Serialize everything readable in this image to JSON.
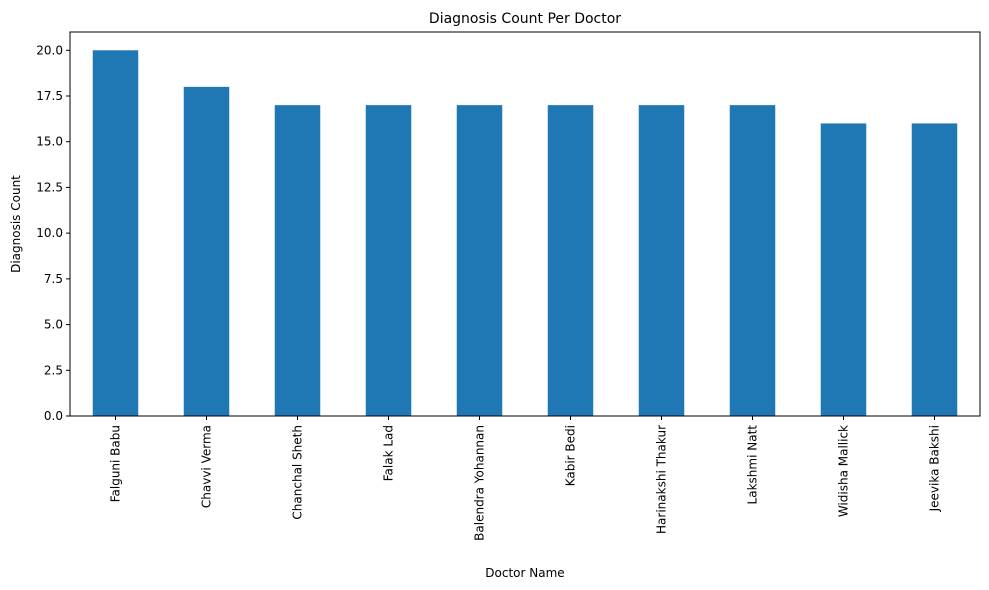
{
  "chart_data": {
    "type": "bar",
    "title": "Diagnosis Count Per Doctor",
    "xlabel": "Doctor Name",
    "ylabel": "Diagnosis Count",
    "categories": [
      "Falguni Babu",
      "Chavvi Verma",
      "Chanchal Sheth",
      "Falak Lad",
      "Balendra Yohannan",
      "Kabir Bedi",
      "Harinakshi Thakur",
      "Lakshmi Natt",
      "Widisha Mallick",
      "Jeevika Bakshi"
    ],
    "values": [
      20,
      18,
      17,
      17,
      17,
      17,
      17,
      17,
      16,
      16
    ],
    "ylim": [
      0,
      21
    ],
    "yticks": [
      "0.0",
      "2.5",
      "5.0",
      "7.5",
      "10.0",
      "12.5",
      "15.0",
      "17.5",
      "20.0"
    ],
    "grid": false,
    "legend": "none",
    "bar_color": "#1f77b4"
  }
}
